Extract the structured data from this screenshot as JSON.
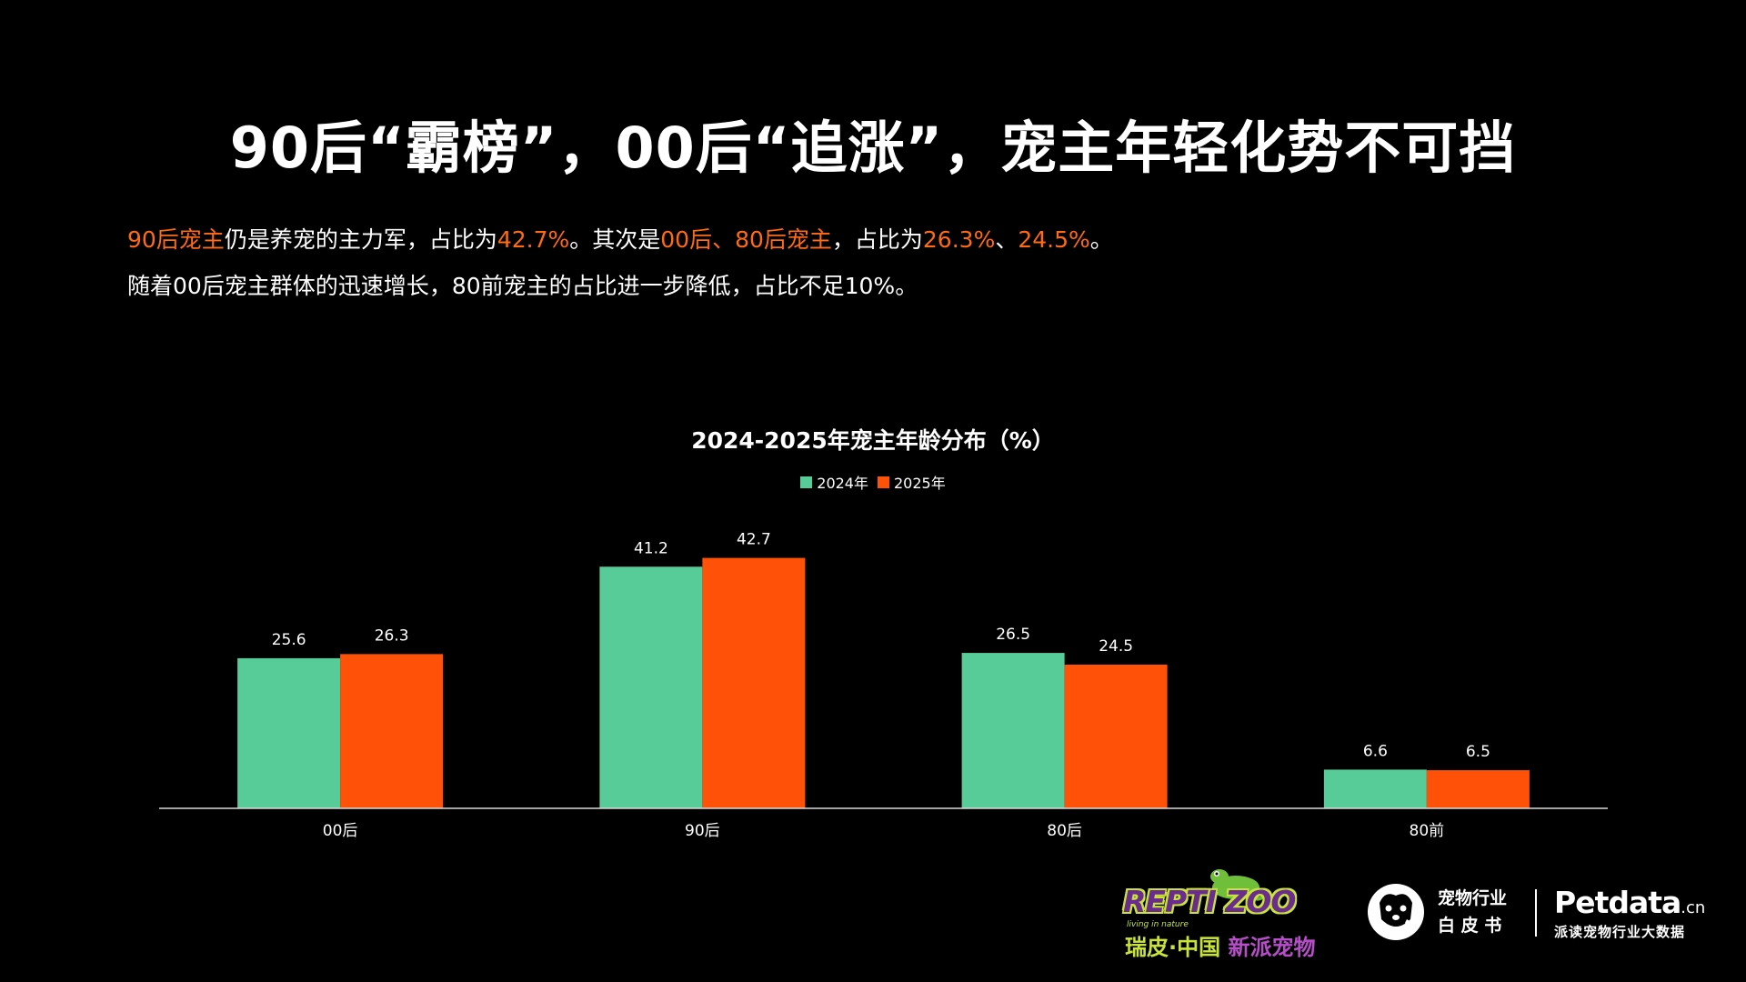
{
  "title": "90后“霸榜”，00后“追涨”，宠主年轻化势不可挡",
  "description": {
    "line1": [
      {
        "text": "90后宠主",
        "highlight": true
      },
      {
        "text": "仍是养宠的主力军，占比为",
        "highlight": false
      },
      {
        "text": "42.7%",
        "highlight": true
      },
      {
        "text": "。其次是",
        "highlight": false
      },
      {
        "text": "00后、80后宠主",
        "highlight": true
      },
      {
        "text": "，占比为",
        "highlight": false
      },
      {
        "text": "26.3%",
        "highlight": true
      },
      {
        "text": "、",
        "highlight": false
      },
      {
        "text": "24.5%",
        "highlight": true
      },
      {
        "text": "。",
        "highlight": false
      }
    ],
    "line2": "随着00后宠主群体的迅速增长，80前宠主的占比进一步降低，占比不足10%。"
  },
  "colors": {
    "background": "#000000",
    "highlight": "#ff6a13",
    "series_2024": "#58cc98",
    "series_2025": "#ff5208",
    "axis": "#d9d9d9"
  },
  "chart_data": {
    "type": "bar",
    "title": "2024-2025年宠主年龄分布（%）",
    "categories": [
      "00后",
      "90后",
      "80后",
      "80前"
    ],
    "series": [
      {
        "name": "2024年",
        "values": [
          25.6,
          41.2,
          26.5,
          6.6
        ]
      },
      {
        "name": "2025年",
        "values": [
          26.3,
          42.7,
          24.5,
          6.5
        ]
      }
    ],
    "ylim": [
      0,
      45
    ],
    "grid": false,
    "legend_position": "top-center",
    "data_labels": true
  },
  "logos": {
    "repti_zoo": {
      "wordmark": "REPTI ZOO",
      "tagline": "living in nature",
      "cn_part1": "瑞皮·中国",
      "cn_part2": "新派宠物"
    },
    "whitepaper": {
      "line1": "宠物行业",
      "line2": "白 皮 书",
      "icon": "pet-face-icon"
    },
    "petdata": {
      "name": "Petdata",
      "suffix": ".cn",
      "slogan": "派读宠物行业大数据"
    }
  }
}
